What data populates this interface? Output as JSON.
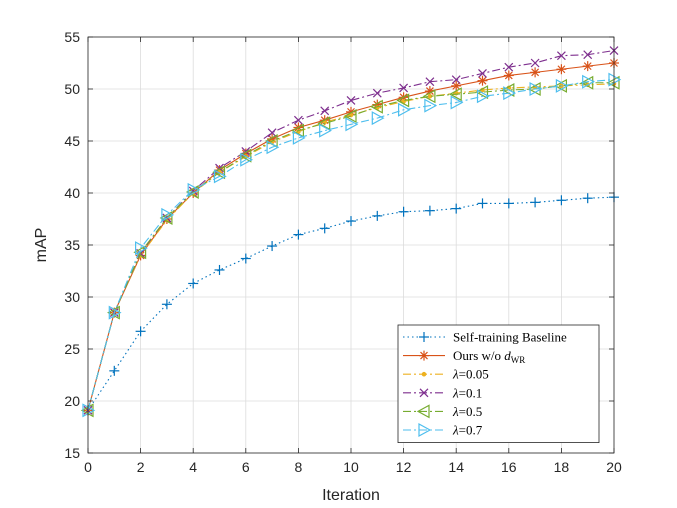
{
  "chart_data": {
    "type": "line",
    "title": "",
    "xlabel": "Iteration",
    "ylabel": "mAP",
    "xlim": [
      0,
      20
    ],
    "ylim": [
      15,
      55
    ],
    "xticks": [
      0,
      2,
      4,
      6,
      8,
      10,
      12,
      14,
      16,
      18,
      20
    ],
    "yticks": [
      15,
      20,
      25,
      30,
      35,
      40,
      45,
      50,
      55
    ],
    "grid": true,
    "legend_position": "bottom-right",
    "x": [
      0,
      1,
      2,
      3,
      4,
      5,
      6,
      7,
      8,
      9,
      10,
      11,
      12,
      13,
      14,
      15,
      16,
      17,
      18,
      19,
      20
    ],
    "series": [
      {
        "name": "Self-training Baseline",
        "color": "#0072BD",
        "dash": "dotted",
        "marker": "plus",
        "values": [
          19.1,
          22.9,
          26.7,
          29.3,
          31.3,
          32.6,
          33.7,
          34.9,
          36.0,
          36.6,
          37.3,
          37.8,
          38.2,
          38.3,
          38.5,
          39.0,
          39.0,
          39.1,
          39.3,
          39.5,
          39.6
        ]
      },
      {
        "name_prefix": "Ours w/o ",
        "name_symbol": "d",
        "name_subscript": "WR",
        "color": "#D95319",
        "dash": "solid",
        "marker": "asterisk",
        "values": [
          19.1,
          28.5,
          34.0,
          37.5,
          40.0,
          42.2,
          43.8,
          45.2,
          46.3,
          47.0,
          47.8,
          48.5,
          49.2,
          49.8,
          50.3,
          50.8,
          51.3,
          51.6,
          51.9,
          52.2,
          52.5
        ]
      },
      {
        "name_prefix": "λ",
        "name": "=0.05",
        "color": "#EDB120",
        "dash": "dashdot",
        "marker": "point",
        "values": [
          19.1,
          28.5,
          34.0,
          37.4,
          40.0,
          42.0,
          43.5,
          44.9,
          45.9,
          46.8,
          47.5,
          48.2,
          48.8,
          49.3,
          49.6,
          49.9,
          50.1,
          50.2,
          50.3,
          50.4,
          50.5
        ]
      },
      {
        "name_prefix": "λ",
        "name": "=0.1",
        "color": "#7E2F8E",
        "dash": "dashdot",
        "marker": "x",
        "values": [
          19.1,
          28.5,
          34.2,
          37.6,
          40.2,
          42.4,
          44.0,
          45.8,
          47.0,
          47.9,
          48.9,
          49.6,
          50.1,
          50.7,
          50.9,
          51.5,
          52.1,
          52.5,
          53.2,
          53.3,
          53.7
        ]
      },
      {
        "name_prefix": "λ",
        "name": "=0.5",
        "color": "#77AC30",
        "dash": "dashdot",
        "marker": "triangle-left",
        "values": [
          19.1,
          28.5,
          34.3,
          37.6,
          40.1,
          42.0,
          43.6,
          45.0,
          46.0,
          46.7,
          47.4,
          48.3,
          48.9,
          49.3,
          49.5,
          49.7,
          49.9,
          50.0,
          50.3,
          50.6,
          50.6
        ]
      },
      {
        "name_prefix": "λ",
        "name": "=0.7",
        "color": "#4DBEEE",
        "dash": "dashdot",
        "marker": "triangle-right",
        "values": [
          19.1,
          28.5,
          34.7,
          37.9,
          40.3,
          41.6,
          43.2,
          44.4,
          45.3,
          46.0,
          46.6,
          47.2,
          48.0,
          48.4,
          48.7,
          49.3,
          49.6,
          50.0,
          50.3,
          50.7,
          50.9
        ]
      }
    ]
  }
}
